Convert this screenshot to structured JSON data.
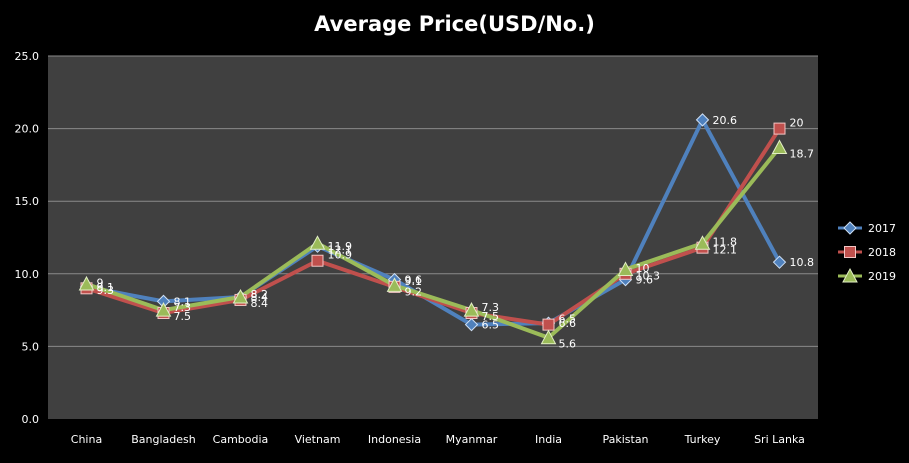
{
  "chart_data": {
    "type": "line",
    "title": "Average Price(USD/No.)",
    "categories": [
      "China",
      "Bangladesh",
      "Cambodia",
      "Vietnam",
      "Indonesia",
      "Myanmar",
      "India",
      "Pakistan",
      "Turkey",
      "Sri Lanka"
    ],
    "series": [
      {
        "name": "2017",
        "values": [
          9.1,
          8.1,
          8.4,
          11.9,
          9.6,
          6.5,
          6.6,
          9.6,
          20.6,
          10.8
        ],
        "color": "#4f81bd",
        "marker": "diamond"
      },
      {
        "name": "2018",
        "values": [
          9.0,
          7.3,
          8.2,
          10.9,
          9.1,
          7.3,
          6.5,
          10.0,
          11.8,
          20.0
        ],
        "color": "#c0504d",
        "marker": "square"
      },
      {
        "name": "2019",
        "values": [
          9.3,
          7.5,
          8.4,
          12.1,
          9.2,
          7.5,
          5.6,
          10.3,
          12.1,
          18.7
        ],
        "color": "#9bbb59",
        "marker": "triangle"
      }
    ],
    "ylim": [
      0,
      25
    ],
    "yticks": [
      "0.0",
      "5.0",
      "10.0",
      "15.0",
      "20.0",
      "25.0"
    ],
    "grid": true,
    "legend": "right",
    "plot_bg": "#404040"
  }
}
